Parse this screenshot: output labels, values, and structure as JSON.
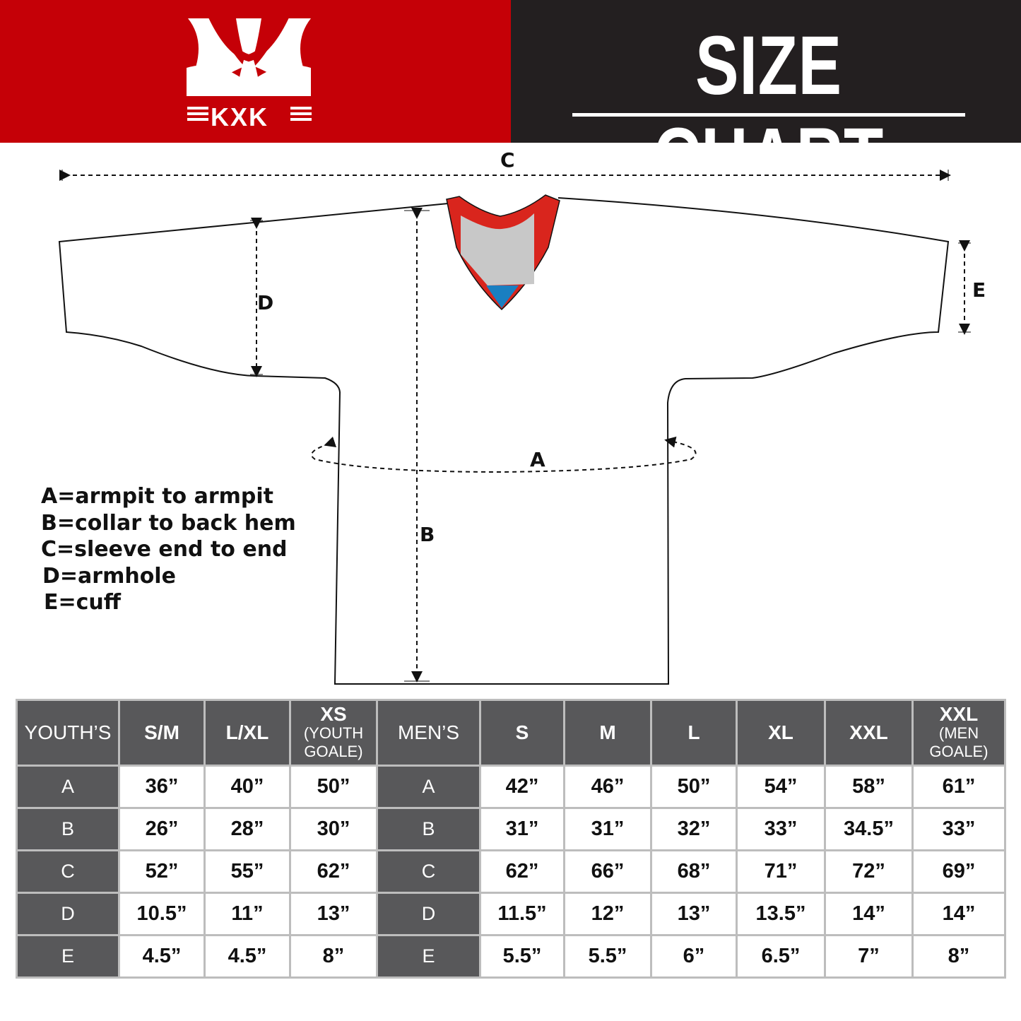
{
  "header": {
    "brand": "KXK",
    "title": "SIZE CHART",
    "colors": {
      "brand_red": "#c50007",
      "dark": "#231f20",
      "table_header": "#58585a"
    }
  },
  "diagram": {
    "labels": {
      "a": "A",
      "b": "B",
      "c": "C",
      "d": "D",
      "e": "E"
    },
    "legend": [
      "A=armpit to armpit",
      "B=collar to back hem",
      "C=sleeve end to end",
      "D=armhole",
      "E=cuff"
    ]
  },
  "table": {
    "youth_header": {
      "label": "YOUTH’S",
      "sizes": [
        {
          "main": "S/M",
          "sub": ""
        },
        {
          "main": "L/XL",
          "sub": ""
        },
        {
          "main": "XS",
          "sub": "(YOUTH GOALE)"
        }
      ]
    },
    "men_header": {
      "label": "MEN’S",
      "sizes": [
        {
          "main": "S",
          "sub": ""
        },
        {
          "main": "M",
          "sub": ""
        },
        {
          "main": "L",
          "sub": ""
        },
        {
          "main": "XL",
          "sub": ""
        },
        {
          "main": "XXL",
          "sub": ""
        },
        {
          "main": "XXL",
          "sub": "(MEN GOALE)"
        }
      ]
    },
    "rows": [
      {
        "key": "A",
        "youth": [
          "36”",
          "40”",
          "50”"
        ],
        "men": [
          "42”",
          "46”",
          "50”",
          "54”",
          "58”",
          "61”"
        ]
      },
      {
        "key": "B",
        "youth": [
          "26”",
          "28”",
          "30”"
        ],
        "men": [
          "31”",
          "31”",
          "32”",
          "33”",
          "34.5”",
          "33”"
        ]
      },
      {
        "key": "C",
        "youth": [
          "52”",
          "55”",
          "62”"
        ],
        "men": [
          "62”",
          "66”",
          "68”",
          "71”",
          "72”",
          "69”"
        ]
      },
      {
        "key": "D",
        "youth": [
          "10.5”",
          "11”",
          "13”"
        ],
        "men": [
          "11.5”",
          "12”",
          "13”",
          "13.5”",
          "14”",
          "14”"
        ]
      },
      {
        "key": "E",
        "youth": [
          "4.5”",
          "4.5”",
          "8”"
        ],
        "men": [
          "5.5”",
          "5.5”",
          "6”",
          "6.5”",
          "7”",
          "8”"
        ]
      }
    ]
  }
}
